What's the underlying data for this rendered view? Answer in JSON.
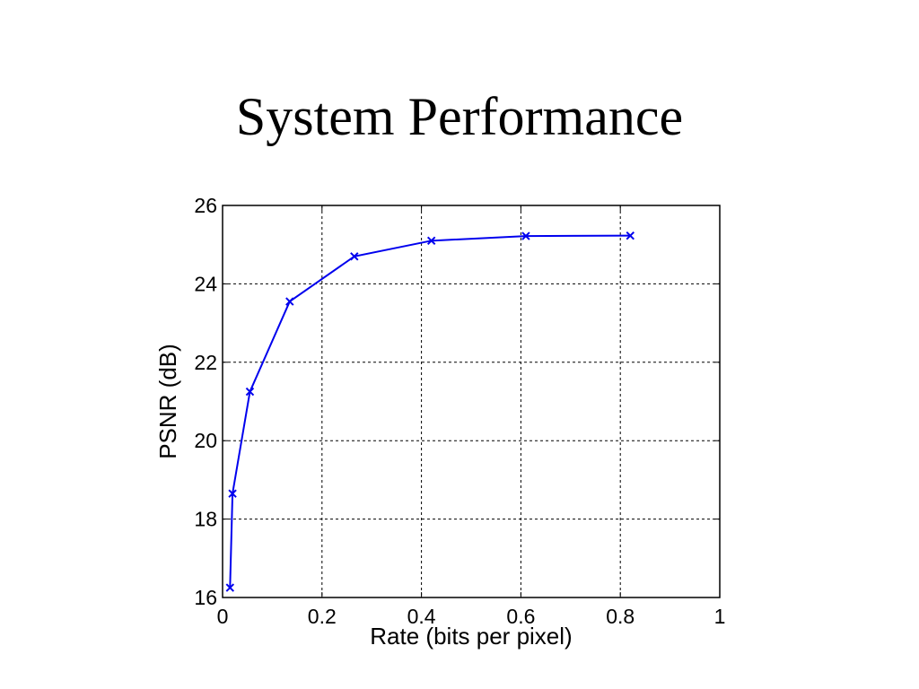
{
  "slide": {
    "title": "System Performance"
  },
  "chart_data": {
    "type": "line",
    "xlabel": "Rate (bits per pixel)",
    "ylabel": "PSNR (dB)",
    "xlim": [
      0,
      1
    ],
    "ylim": [
      16,
      26
    ],
    "xticks": [
      0,
      0.2,
      0.4,
      0.6,
      0.8,
      1
    ],
    "yticks": [
      16,
      18,
      20,
      22,
      24,
      26
    ],
    "xtick_labels": [
      "0",
      "0.2",
      "0.4",
      "0.6",
      "0.8",
      "1"
    ],
    "ytick_labels": [
      "16",
      "18",
      "20",
      "22",
      "24",
      "26"
    ],
    "grid": true,
    "marker": "x",
    "series": [
      {
        "color": "#0000ee",
        "x": [
          0.015,
          0.02,
          0.055,
          0.135,
          0.265,
          0.42,
          0.61,
          0.82
        ],
        "y": [
          16.25,
          18.65,
          21.25,
          23.55,
          24.7,
          25.1,
          25.22,
          25.23
        ]
      }
    ]
  }
}
